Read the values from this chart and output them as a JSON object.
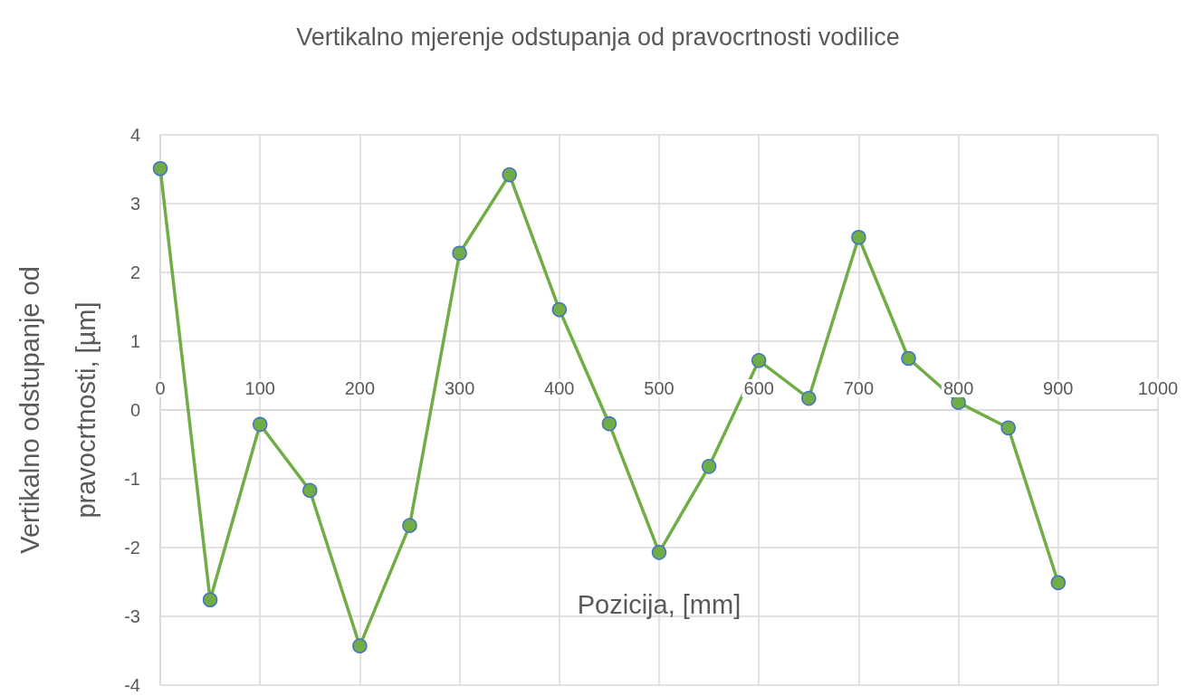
{
  "chart_data": {
    "type": "line",
    "title": "Vertikalno mjerenje odstupanja od pravocrtnosti vodilice",
    "xlabel": "Pozicija, [mm]",
    "ylabel": "Vertikalno odstupanje od pravocrtnosti, [µm]",
    "x": [
      0,
      50,
      100,
      150,
      200,
      250,
      300,
      350,
      400,
      450,
      500,
      550,
      600,
      650,
      700,
      750,
      800,
      850,
      900
    ],
    "series": [
      {
        "color": "#70ad47",
        "values": [
          3.51,
          -2.76,
          -0.21,
          -1.17,
          -3.43,
          -1.68,
          2.28,
          3.42,
          1.46,
          -0.2,
          -2.07,
          -0.82,
          0.72,
          0.17,
          2.51,
          0.75,
          0.11,
          -0.26,
          -2.51
        ]
      }
    ],
    "xlim": [
      0,
      1000
    ],
    "xticks": [
      0,
      100,
      200,
      300,
      400,
      500,
      600,
      700,
      800,
      900,
      {
        "value": 1000,
        "label": "1000"
      }
    ],
    "ylim": [
      -4,
      4
    ],
    "yticks": [
      -4,
      -3,
      -2,
      -1,
      0,
      1,
      2,
      3,
      4
    ],
    "grid": true,
    "marker": "circle",
    "line_style": "solid"
  }
}
